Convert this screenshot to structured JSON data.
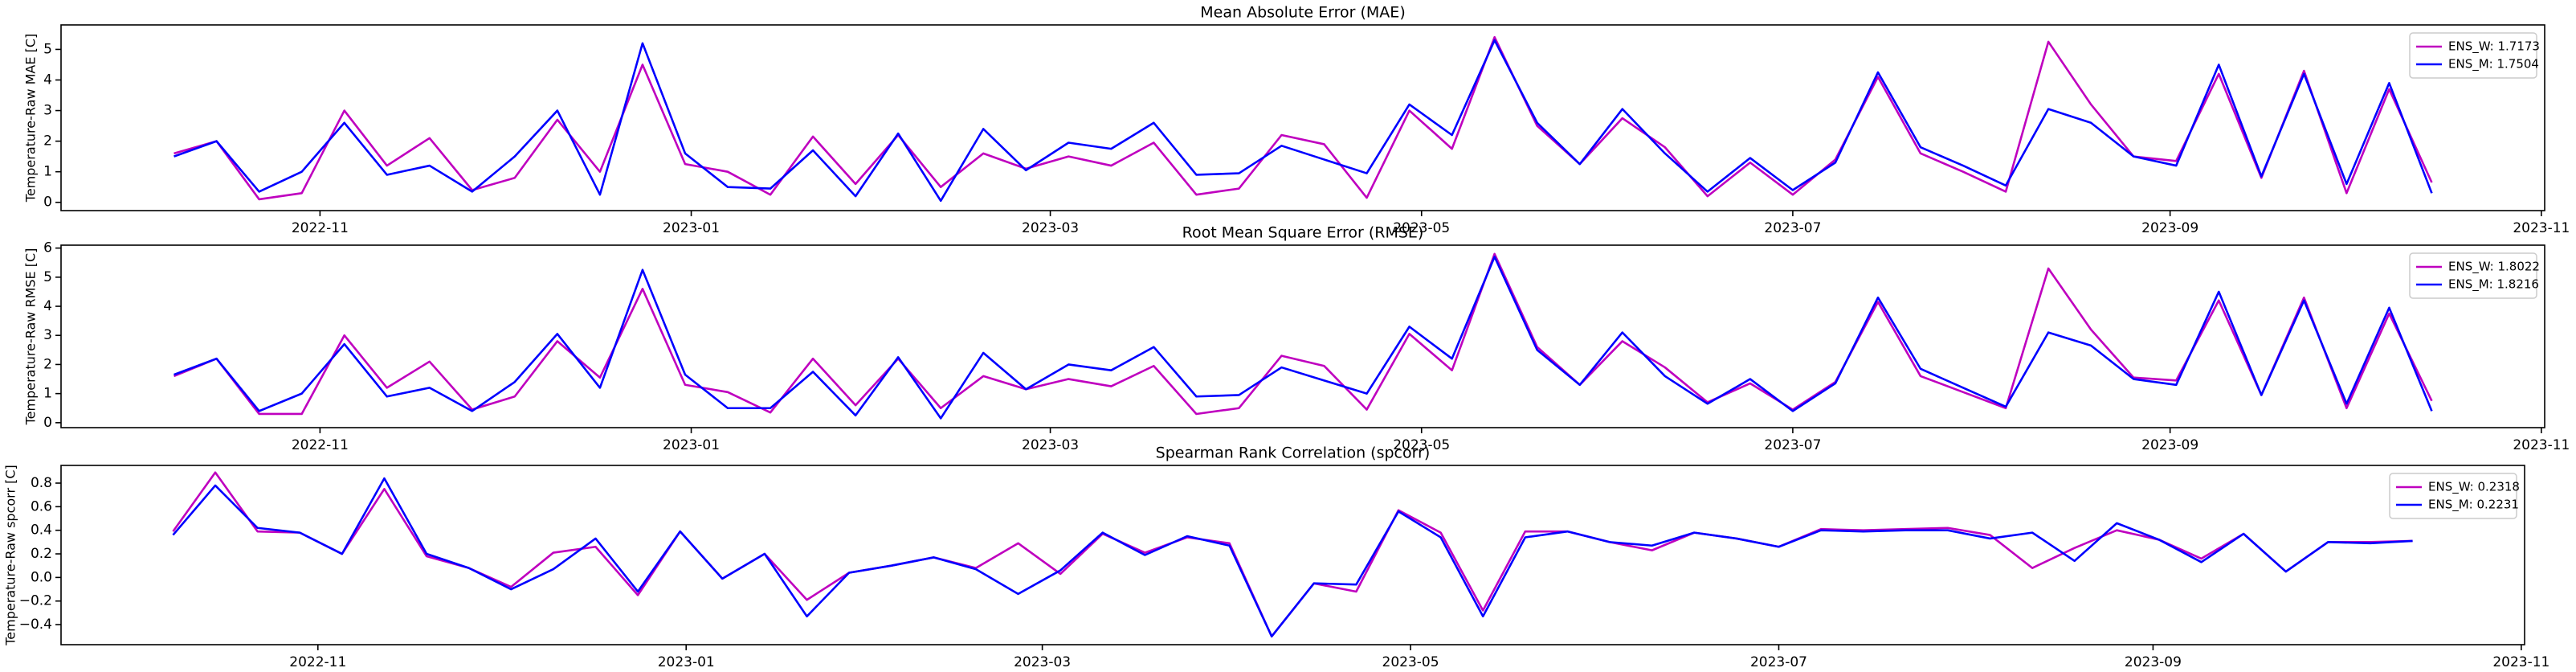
{
  "chart_data": [
    {
      "type": "line",
      "title": "Mean Absolute Error (MAE)",
      "y_label": "Temperature-Raw MAE [C]",
      "x": [
        19273,
        19280,
        19287,
        19294,
        19301,
        19308,
        19315,
        19322,
        19329,
        19336,
        19343,
        19350,
        19357,
        19364,
        19371,
        19378,
        19385,
        19392,
        19399,
        19406,
        19413,
        19420,
        19427,
        19434,
        19441,
        19448,
        19455,
        19462,
        19469,
        19476,
        19483,
        19490,
        19497,
        19504,
        19511,
        19518,
        19525,
        19532,
        19539,
        19546,
        19553,
        19560,
        19567,
        19574,
        19581,
        19588,
        19595,
        19602,
        19609,
        19616,
        19623,
        19630,
        19637,
        19644
      ],
      "xlim": [
        19254.45,
        19662.55
      ],
      "xticks": [
        {
          "value": 19297,
          "label": "2022-11"
        },
        {
          "value": 19358,
          "label": "2023-01"
        },
        {
          "value": 19417,
          "label": "2023-03"
        },
        {
          "value": 19478,
          "label": "2023-05"
        },
        {
          "value": 19539,
          "label": "2023-07"
        },
        {
          "value": 19601,
          "label": "2023-09"
        },
        {
          "value": 19662,
          "label": "2023-11"
        }
      ],
      "ylim": [
        -0.27,
        5.8
      ],
      "yticks": [
        0,
        1,
        2,
        3,
        4,
        5
      ],
      "legend": "upper right",
      "series": [
        {
          "name": "ENS_W: 1.7173",
          "color": "#bf00bf",
          "values": [
            1.6,
            2.0,
            0.1,
            0.3,
            3.0,
            1.2,
            2.1,
            0.4,
            0.8,
            2.7,
            1.0,
            4.5,
            1.25,
            1.0,
            0.25,
            2.15,
            0.6,
            2.2,
            0.5,
            1.6,
            1.1,
            1.5,
            1.2,
            1.95,
            0.25,
            0.45,
            2.2,
            1.9,
            0.15,
            3.0,
            1.75,
            5.4,
            2.5,
            1.25,
            2.75,
            1.8,
            0.2,
            1.3,
            0.25,
            1.4,
            4.1,
            1.6,
            1.0,
            0.35,
            5.25,
            3.2,
            1.5,
            1.35,
            4.2,
            0.8,
            4.3,
            0.3,
            3.7,
            0.65
          ]
        },
        {
          "name": "ENS_M: 1.7504",
          "color": "#0000ff",
          "values": [
            1.5,
            2.0,
            0.35,
            1.0,
            2.6,
            0.9,
            1.2,
            0.35,
            1.5,
            3.0,
            0.25,
            5.2,
            1.6,
            0.5,
            0.45,
            1.7,
            0.2,
            2.25,
            0.05,
            2.4,
            1.05,
            1.95,
            1.75,
            2.6,
            0.9,
            0.95,
            1.85,
            1.4,
            0.95,
            3.2,
            2.2,
            5.3,
            2.6,
            1.25,
            3.05,
            1.6,
            0.35,
            1.45,
            0.4,
            1.3,
            4.25,
            1.8,
            1.2,
            0.55,
            3.05,
            2.6,
            1.5,
            1.2,
            4.5,
            0.85,
            4.2,
            0.6,
            3.9,
            0.3
          ]
        }
      ]
    },
    {
      "type": "line",
      "title": "Root Mean Square Error (RMSE)",
      "y_label": "Temperature-Raw RMSE [C]",
      "x": [
        19273,
        19280,
        19287,
        19294,
        19301,
        19308,
        19315,
        19322,
        19329,
        19336,
        19343,
        19350,
        19357,
        19364,
        19371,
        19378,
        19385,
        19392,
        19399,
        19406,
        19413,
        19420,
        19427,
        19434,
        19441,
        19448,
        19455,
        19462,
        19469,
        19476,
        19483,
        19490,
        19497,
        19504,
        19511,
        19518,
        19525,
        19532,
        19539,
        19546,
        19553,
        19560,
        19567,
        19574,
        19581,
        19588,
        19595,
        19602,
        19609,
        19616,
        19623,
        19630,
        19637,
        19644
      ],
      "xlim": [
        19254.45,
        19662.55
      ],
      "xticks": [
        {
          "value": 19297,
          "label": "2022-11"
        },
        {
          "value": 19358,
          "label": "2023-01"
        },
        {
          "value": 19417,
          "label": "2023-03"
        },
        {
          "value": 19478,
          "label": "2023-05"
        },
        {
          "value": 19539,
          "label": "2023-07"
        },
        {
          "value": 19601,
          "label": "2023-09"
        },
        {
          "value": 19662,
          "label": "2023-11"
        }
      ],
      "ylim": [
        -0.17,
        6.1
      ],
      "yticks": [
        0,
        1,
        2,
        3,
        4,
        5,
        6
      ],
      "legend": "upper right",
      "series": [
        {
          "name": "ENS_W: 1.8022",
          "color": "#bf00bf",
          "values": [
            1.6,
            2.2,
            0.3,
            0.3,
            3.0,
            1.2,
            2.1,
            0.45,
            0.9,
            2.8,
            1.55,
            4.6,
            1.3,
            1.05,
            0.35,
            2.2,
            0.6,
            2.2,
            0.5,
            1.6,
            1.15,
            1.5,
            1.25,
            1.95,
            0.3,
            0.5,
            2.3,
            1.95,
            0.45,
            3.05,
            1.8,
            5.8,
            2.6,
            1.3,
            2.8,
            1.9,
            0.7,
            1.35,
            0.45,
            1.4,
            4.15,
            1.6,
            1.05,
            0.5,
            5.3,
            3.2,
            1.55,
            1.45,
            4.2,
            0.95,
            4.3,
            0.5,
            3.75,
            0.75
          ]
        },
        {
          "name": "ENS_M: 1.8216",
          "color": "#0000ff",
          "values": [
            1.65,
            2.2,
            0.4,
            1.0,
            2.7,
            0.9,
            1.2,
            0.4,
            1.4,
            3.05,
            1.2,
            5.25,
            1.65,
            0.5,
            0.5,
            1.75,
            0.25,
            2.25,
            0.15,
            2.4,
            1.15,
            2.0,
            1.8,
            2.6,
            0.9,
            0.95,
            1.9,
            1.45,
            1.0,
            3.3,
            2.2,
            5.7,
            2.5,
            1.3,
            3.1,
            1.6,
            0.65,
            1.5,
            0.4,
            1.35,
            4.3,
            1.85,
            1.2,
            0.55,
            3.1,
            2.65,
            1.5,
            1.3,
            4.5,
            0.95,
            4.2,
            0.65,
            3.95,
            0.4
          ]
        }
      ]
    },
    {
      "type": "line",
      "title": "Spearman Rank Correlation (spcorr)",
      "y_label": "Temperature-Raw spcorr [C]",
      "x": [
        19273,
        19280,
        19287,
        19294,
        19301,
        19308,
        19315,
        19322,
        19329,
        19336,
        19343,
        19350,
        19357,
        19364,
        19371,
        19378,
        19385,
        19392,
        19399,
        19406,
        19413,
        19420,
        19427,
        19434,
        19441,
        19448,
        19455,
        19462,
        19469,
        19476,
        19483,
        19490,
        19497,
        19504,
        19511,
        19518,
        19525,
        19532,
        19539,
        19546,
        19553,
        19560,
        19567,
        19574,
        19581,
        19588,
        19595,
        19602,
        19609,
        19616,
        19623,
        19630,
        19637,
        19644
      ],
      "xlim": [
        19254.45,
        19662.55
      ],
      "xticks": [
        {
          "value": 19297,
          "label": "2022-11"
        },
        {
          "value": 19358,
          "label": "2023-01"
        },
        {
          "value": 19417,
          "label": "2023-03"
        },
        {
          "value": 19478,
          "label": "2023-05"
        },
        {
          "value": 19539,
          "label": "2023-07"
        },
        {
          "value": 19601,
          "label": "2023-09"
        },
        {
          "value": 19662,
          "label": "2023-11"
        }
      ],
      "ylim": [
        -0.57,
        0.95
      ],
      "yticks": [
        {
          "value": -0.4,
          "label": "−0.4"
        },
        {
          "value": -0.2,
          "label": "−0.2"
        },
        {
          "value": 0,
          "label": "0.0"
        },
        0.2,
        0.4,
        0.6,
        0.8
      ],
      "legend": "upper right",
      "series": [
        {
          "name": "ENS_W: 0.2318",
          "color": "#bf00bf",
          "values": [
            0.39,
            0.89,
            0.39,
            0.38,
            0.2,
            0.75,
            0.18,
            0.08,
            -0.08,
            0.21,
            0.26,
            -0.15,
            0.39,
            -0.01,
            0.2,
            -0.19,
            0.04,
            0.1,
            0.17,
            0.08,
            0.29,
            0.03,
            0.37,
            0.21,
            0.34,
            0.29,
            -0.5,
            -0.05,
            -0.12,
            0.57,
            0.38,
            -0.28,
            0.39,
            0.39,
            0.3,
            0.23,
            0.38,
            0.33,
            0.26,
            0.41,
            0.4,
            0.41,
            0.42,
            0.36,
            0.08,
            0.25,
            0.4,
            0.32,
            0.16,
            0.37,
            0.05,
            0.3,
            0.3,
            0.31
          ]
        },
        {
          "name": "ENS_M: 0.2231",
          "color": "#0000ff",
          "values": [
            0.36,
            0.78,
            0.42,
            0.38,
            0.2,
            0.84,
            0.2,
            0.08,
            -0.1,
            0.07,
            0.33,
            -0.12,
            0.39,
            -0.01,
            0.2,
            -0.33,
            0.04,
            0.1,
            0.17,
            0.07,
            -0.14,
            0.06,
            0.38,
            0.19,
            0.35,
            0.27,
            -0.5,
            -0.05,
            -0.06,
            0.56,
            0.34,
            -0.33,
            0.34,
            0.39,
            0.3,
            0.27,
            0.38,
            0.33,
            0.26,
            0.4,
            0.39,
            0.4,
            0.4,
            0.33,
            0.38,
            0.14,
            0.46,
            0.32,
            0.13,
            0.37,
            0.05,
            0.3,
            0.29,
            0.31
          ]
        }
      ]
    }
  ]
}
